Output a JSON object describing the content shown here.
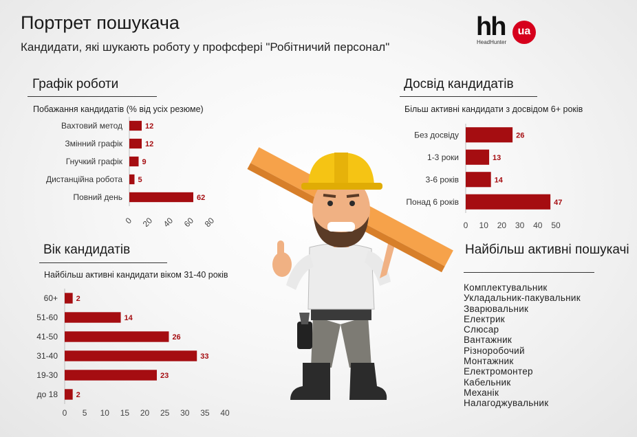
{
  "title": "Портрет пошукача",
  "subtitle": "Кандидати, які шукають роботу у профсфері \"Робітничий персонал\"",
  "logo": {
    "mark": "hh",
    "badge": "ua",
    "caption": "HeadHunter",
    "badge_color": "#d6001c"
  },
  "bar_color": "#a50d11",
  "sections": {
    "schedule": {
      "heading": "Графік роботи",
      "note": "Побажання кандидатів (% від усіх резюме)"
    },
    "experience": {
      "heading": "Досвід кандидатів",
      "note": "Більш активні кандидати з досвідом 6+ років"
    },
    "age": {
      "heading": "Вік кандидатів",
      "note": "Найбільш активні кандидати віком 31-40 років"
    },
    "active": {
      "heading": "Найбільш активні пошукачі",
      "items": [
        "Комплектувальник",
        "Укладальник-пакувальник",
        "Зварювальник",
        "Електрик",
        "Слюсар",
        "Вантажник",
        "Різноробочий",
        "Монтажник",
        "Електромонтер",
        "Кабельник",
        "Механік",
        "Налагоджувальник"
      ]
    }
  },
  "illustration": "construction-worker-carrying-plank",
  "chart_data": [
    {
      "type": "bar",
      "orientation": "horizontal",
      "title": "Графік роботи",
      "categories": [
        "Вахтовий метод",
        "Змінний графік",
        "Гнучкий графік",
        "Дистанційна робота",
        "Повний день"
      ],
      "values": [
        12,
        12,
        9,
        5,
        62
      ],
      "xlim": [
        0,
        80
      ],
      "xticks": [
        0,
        20,
        40,
        60,
        80
      ]
    },
    {
      "type": "bar",
      "orientation": "horizontal",
      "title": "Досвід кандидатів",
      "categories": [
        "Без досвіду",
        "1-3 роки",
        "3-6 років",
        "Понад 6 років"
      ],
      "values": [
        26,
        13,
        14,
        47
      ],
      "xlim": [
        0,
        50
      ],
      "xticks": [
        0,
        10,
        20,
        30,
        40,
        50
      ]
    },
    {
      "type": "bar",
      "orientation": "horizontal",
      "title": "Вік кандидатів",
      "categories": [
        "60+",
        "51-60",
        "41-50",
        "31-40",
        "19-30",
        "до 18"
      ],
      "values": [
        2,
        14,
        26,
        33,
        23,
        2
      ],
      "xlim": [
        0,
        40
      ],
      "xticks": [
        0,
        5,
        10,
        15,
        20,
        25,
        30,
        35,
        40
      ]
    }
  ]
}
